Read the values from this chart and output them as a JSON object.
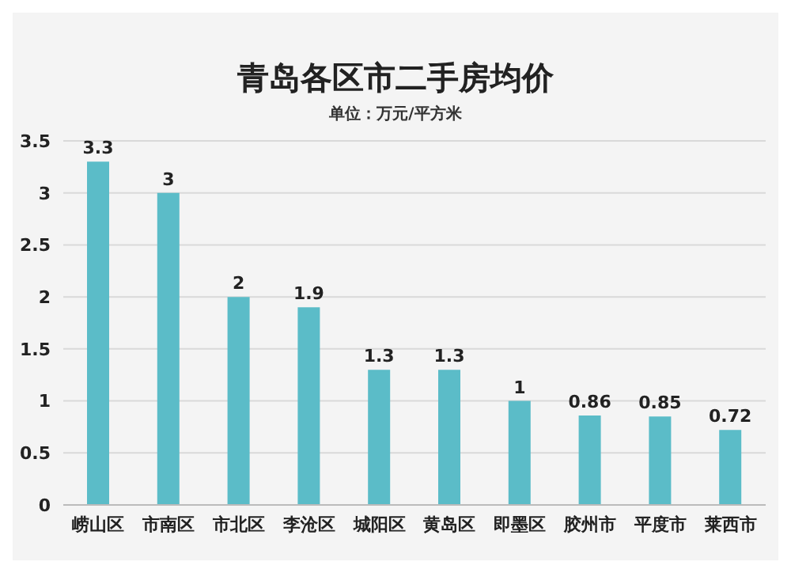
{
  "chart_data": {
    "type": "bar",
    "title": "青岛各区市二手房均价",
    "subtitle": "单位：万元/平方米",
    "categories": [
      "崂山区",
      "市南区",
      "市北区",
      "李沧区",
      "城阳区",
      "黄岛区",
      "即墨区",
      "胶州市",
      "平度市",
      "莱西市"
    ],
    "values": [
      3.3,
      3,
      2,
      1.9,
      1.3,
      1.3,
      1,
      0.86,
      0.85,
      0.72
    ],
    "color": "#5bbcc8",
    "ylim": [
      0,
      3.5
    ],
    "yticks": [
      0,
      0.5,
      1,
      1.5,
      2,
      2.5,
      3,
      3.5
    ],
    "grid": "y",
    "data_labels": true
  }
}
